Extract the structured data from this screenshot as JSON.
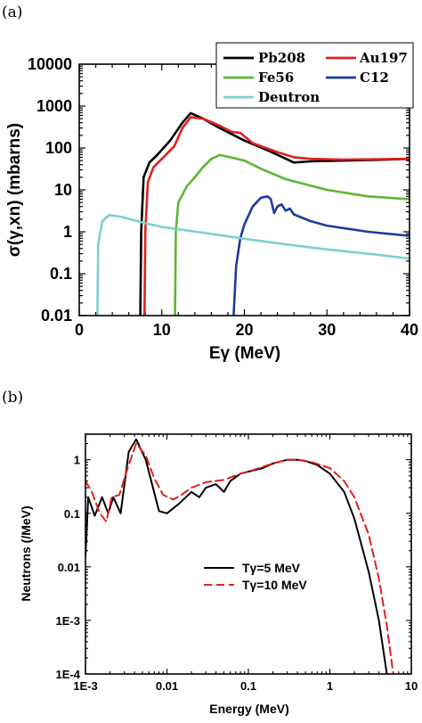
{
  "panel_labels": [
    "(a)",
    "(b)"
  ],
  "chart_data": [
    {
      "panel": "(a)",
      "type": "line",
      "xlabel": "Eγ  (MeV)",
      "ylabel": "σ(γ,xn)  (mbarns)",
      "xlim": [
        0,
        40
      ],
      "ylim": [
        0.01,
        10000
      ],
      "yscale": "log",
      "xticks": [
        "0",
        "10",
        "20",
        "30",
        "40"
      ],
      "yticks": [
        "0.01",
        "0.1",
        "1",
        "10",
        "100",
        "1000",
        "10000"
      ],
      "legend_placement": "top-right",
      "series": [
        {
          "name": "Pb208",
          "color": "#000000",
          "points": [
            [
              7.4,
              0.01
            ],
            [
              7.5,
              1
            ],
            [
              7.8,
              20
            ],
            [
              8.5,
              45
            ],
            [
              9.5,
              70
            ],
            [
              11,
              150
            ],
            [
              12.5,
              400
            ],
            [
              13.5,
              680
            ],
            [
              15,
              500
            ],
            [
              17,
              300
            ],
            [
              20,
              150
            ],
            [
              23,
              85
            ],
            [
              26,
              45
            ],
            [
              28,
              48
            ],
            [
              32,
              50
            ],
            [
              36,
              52
            ],
            [
              40,
              55
            ]
          ]
        },
        {
          "name": "Au197",
          "color": "#e0201b",
          "points": [
            [
              7.9,
              0.01
            ],
            [
              8.0,
              1
            ],
            [
              8.3,
              15
            ],
            [
              9,
              35
            ],
            [
              10,
              55
            ],
            [
              11.5,
              110
            ],
            [
              12.5,
              300
            ],
            [
              13.5,
              540
            ],
            [
              15,
              500
            ],
            [
              17,
              340
            ],
            [
              18.5,
              240
            ],
            [
              19.5,
              230
            ],
            [
              21,
              130
            ],
            [
              24,
              80
            ],
            [
              26,
              60
            ],
            [
              28,
              55
            ],
            [
              32,
              53
            ],
            [
              40,
              55
            ]
          ]
        },
        {
          "name": "Fe56",
          "color": "#5ab832",
          "points": [
            [
              11.6,
              0.01
            ],
            [
              11.7,
              1
            ],
            [
              12,
              5
            ],
            [
              13,
              12
            ],
            [
              14,
              20
            ],
            [
              15,
              35
            ],
            [
              16,
              55
            ],
            [
              17,
              68
            ],
            [
              18,
              62
            ],
            [
              20,
              50
            ],
            [
              22,
              32
            ],
            [
              25,
              18
            ],
            [
              30,
              10
            ],
            [
              35,
              7
            ],
            [
              40,
              6
            ]
          ]
        },
        {
          "name": "C12",
          "color": "#1f3a9e",
          "points": [
            [
              18.7,
              0.01
            ],
            [
              19,
              0.15
            ],
            [
              19.5,
              0.7
            ],
            [
              20,
              1.5
            ],
            [
              21,
              4
            ],
            [
              22,
              6.5
            ],
            [
              22.8,
              7
            ],
            [
              23.2,
              6
            ],
            [
              23.6,
              2.8
            ],
            [
              24,
              4
            ],
            [
              24.5,
              4.5
            ],
            [
              25,
              3.2
            ],
            [
              25.5,
              3.6
            ],
            [
              26,
              2.6
            ],
            [
              28,
              1.8
            ],
            [
              30,
              1.4
            ],
            [
              35,
              1.0
            ],
            [
              40,
              0.8
            ]
          ]
        },
        {
          "name": "Deutron",
          "color": "#7ccfcf",
          "points": [
            [
              2.2,
              0.01
            ],
            [
              2.3,
              0.5
            ],
            [
              2.8,
              1.8
            ],
            [
              3.6,
              2.5
            ],
            [
              5,
              2.3
            ],
            [
              8,
              1.6
            ],
            [
              10,
              1.3
            ],
            [
              15,
              0.95
            ],
            [
              20,
              0.68
            ],
            [
              25,
              0.5
            ],
            [
              30,
              0.38
            ],
            [
              35,
              0.3
            ],
            [
              40,
              0.23
            ]
          ]
        }
      ]
    },
    {
      "panel": "(b)",
      "type": "line",
      "xlabel": "Energy (MeV)",
      "ylabel": "Neutrons (/MeV)",
      "xlim": [
        0.001,
        10
      ],
      "ylim": [
        0.0001,
        3
      ],
      "xscale": "log",
      "yscale": "log",
      "xticks": [
        "1E-3",
        "0.01",
        "0.1",
        "1",
        "10"
      ],
      "yticks": [
        "1E-4",
        "1E-3",
        "0.01",
        "0.1",
        "1"
      ],
      "legend_placement": "lower-center",
      "series": [
        {
          "name": "Tγ=5 MeV",
          "color": "#000000",
          "dash": "solid",
          "points": [
            [
              0.001,
              0.015
            ],
            [
              0.00108,
              0.2
            ],
            [
              0.0013,
              0.09
            ],
            [
              0.0016,
              0.2
            ],
            [
              0.0019,
              0.1
            ],
            [
              0.0022,
              0.2
            ],
            [
              0.0027,
              0.1
            ],
            [
              0.0034,
              1.4
            ],
            [
              0.0042,
              2.4
            ],
            [
              0.0055,
              1.0
            ],
            [
              0.008,
              0.11
            ],
            [
              0.01,
              0.1
            ],
            [
              0.014,
              0.15
            ],
            [
              0.02,
              0.25
            ],
            [
              0.025,
              0.2
            ],
            [
              0.03,
              0.3
            ],
            [
              0.04,
              0.35
            ],
            [
              0.05,
              0.25
            ],
            [
              0.06,
              0.4
            ],
            [
              0.08,
              0.55
            ],
            [
              0.1,
              0.6
            ],
            [
              0.15,
              0.7
            ],
            [
              0.2,
              0.85
            ],
            [
              0.3,
              1.0
            ],
            [
              0.4,
              1.0
            ],
            [
              0.5,
              0.95
            ],
            [
              0.7,
              0.8
            ],
            [
              1,
              0.55
            ],
            [
              1.5,
              0.25
            ],
            [
              2,
              0.08
            ],
            [
              3,
              0.008
            ],
            [
              4,
              0.001
            ],
            [
              5,
              0.0001
            ]
          ]
        },
        {
          "name": "Tγ=10 MeV",
          "color": "#e0201b",
          "dash": "dashed",
          "points": [
            [
              0.001,
              0.4
            ],
            [
              0.0012,
              0.25
            ],
            [
              0.0015,
              0.1
            ],
            [
              0.0018,
              0.07
            ],
            [
              0.0021,
              0.2
            ],
            [
              0.0026,
              0.22
            ],
            [
              0.0033,
              0.7
            ],
            [
              0.0042,
              2.0
            ],
            [
              0.0055,
              1.2
            ],
            [
              0.007,
              0.45
            ],
            [
              0.009,
              0.22
            ],
            [
              0.012,
              0.18
            ],
            [
              0.015,
              0.22
            ],
            [
              0.02,
              0.3
            ],
            [
              0.03,
              0.38
            ],
            [
              0.05,
              0.42
            ],
            [
              0.08,
              0.55
            ],
            [
              0.1,
              0.6
            ],
            [
              0.2,
              0.85
            ],
            [
              0.3,
              1.0
            ],
            [
              0.4,
              1.0
            ],
            [
              0.6,
              0.9
            ],
            [
              1,
              0.7
            ],
            [
              1.5,
              0.4
            ],
            [
              2,
              0.2
            ],
            [
              3,
              0.04
            ],
            [
              4,
              0.006
            ],
            [
              5,
              0.0008
            ],
            [
              6,
              0.0001
            ]
          ]
        }
      ]
    }
  ]
}
